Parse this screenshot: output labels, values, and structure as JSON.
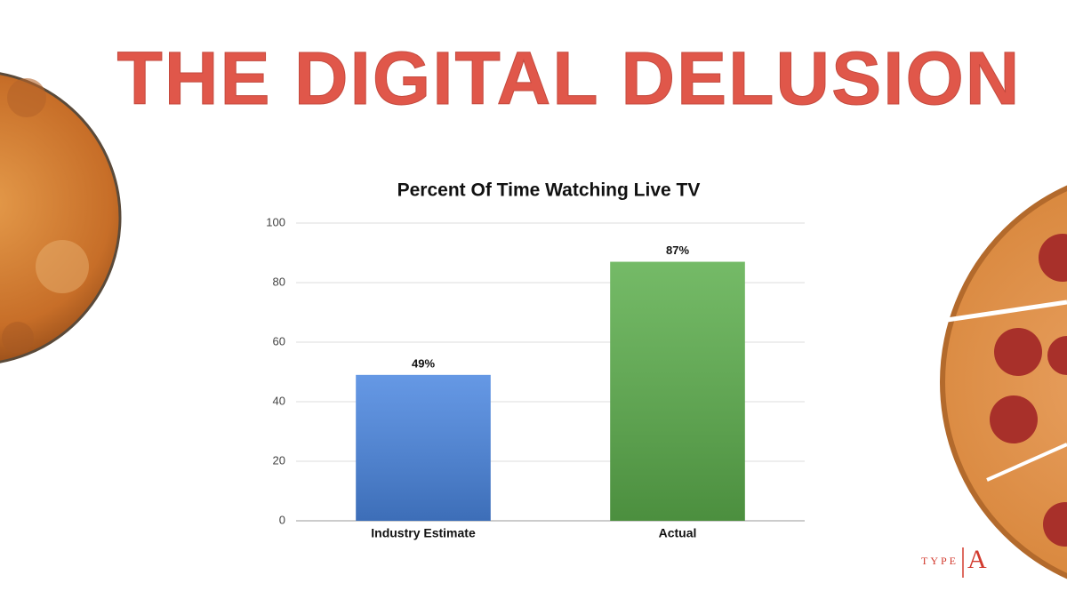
{
  "slide": {
    "title": "THE DIGITAL DELUSION",
    "logo_word": "TYPE",
    "logo_letter": "A"
  },
  "chart_data": {
    "type": "bar",
    "title": "Percent Of Time Watching Live TV",
    "categories": [
      "Industry Estimate",
      "Actual"
    ],
    "values": [
      49,
      87
    ],
    "value_labels": [
      "49%",
      "87%"
    ],
    "colors": [
      "#4a86e0",
      "#5cae4c"
    ],
    "ylim": [
      0,
      100
    ],
    "yticks": [
      0,
      20,
      40,
      60,
      80,
      100
    ],
    "grid": true
  }
}
